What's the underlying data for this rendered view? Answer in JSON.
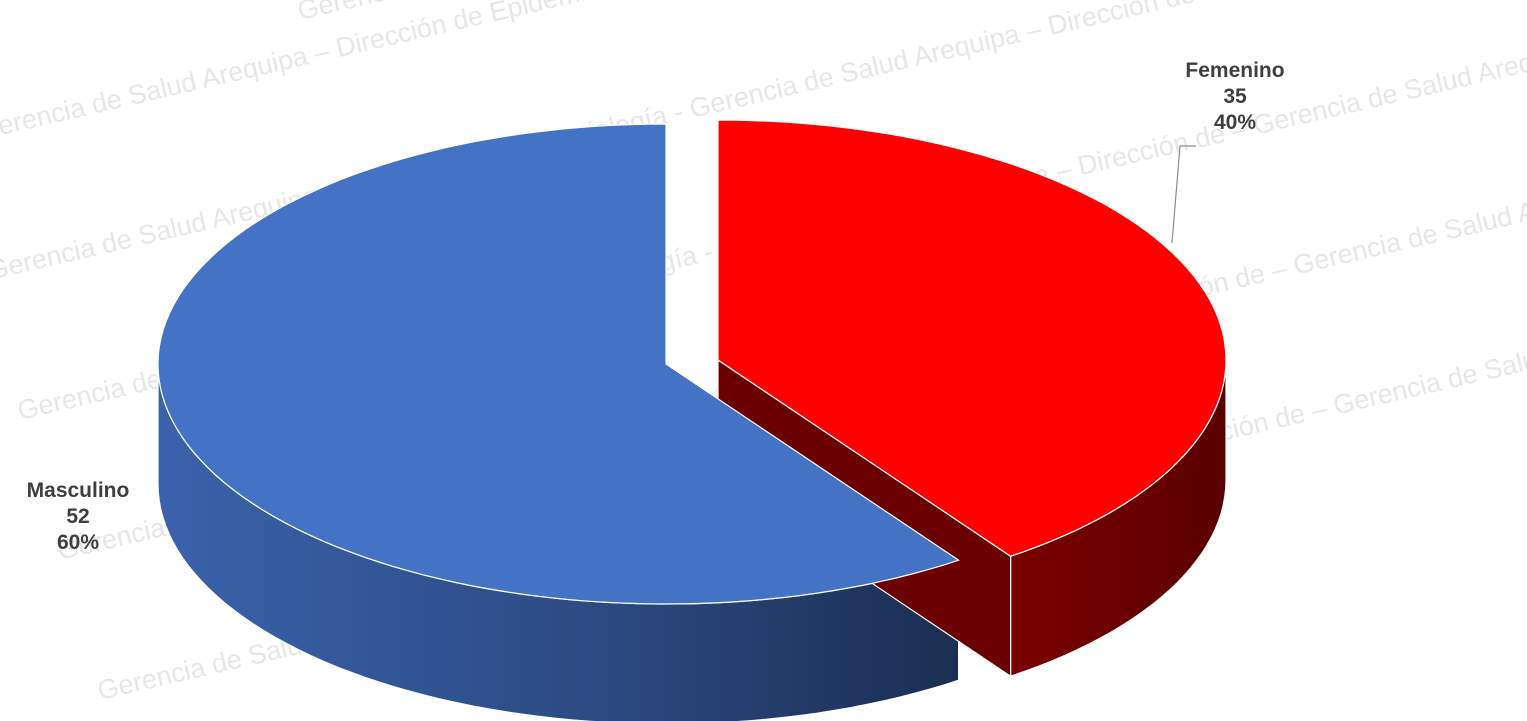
{
  "watermark": {
    "text": "Gerencia de Salud Arequipa – Dirección de Epidemiología - Gerencia de Salud Arequipa – Dirección de"
  },
  "chart_data": {
    "type": "pie",
    "three_d": true,
    "title": "",
    "unit": "",
    "slices": [
      {
        "name": "Masculino",
        "value": 52,
        "percent": "60%",
        "color": "#4472c4",
        "label": "Masculino",
        "value_label": "52",
        "percent_label": "60%"
      },
      {
        "name": "Femenino",
        "value": 35,
        "percent": "40%",
        "color": "#ff0000",
        "label": "Femenino",
        "value_label": "35",
        "percent_label": "40%"
      }
    ],
    "legend": "none",
    "data_labels": "outside with leader line"
  }
}
